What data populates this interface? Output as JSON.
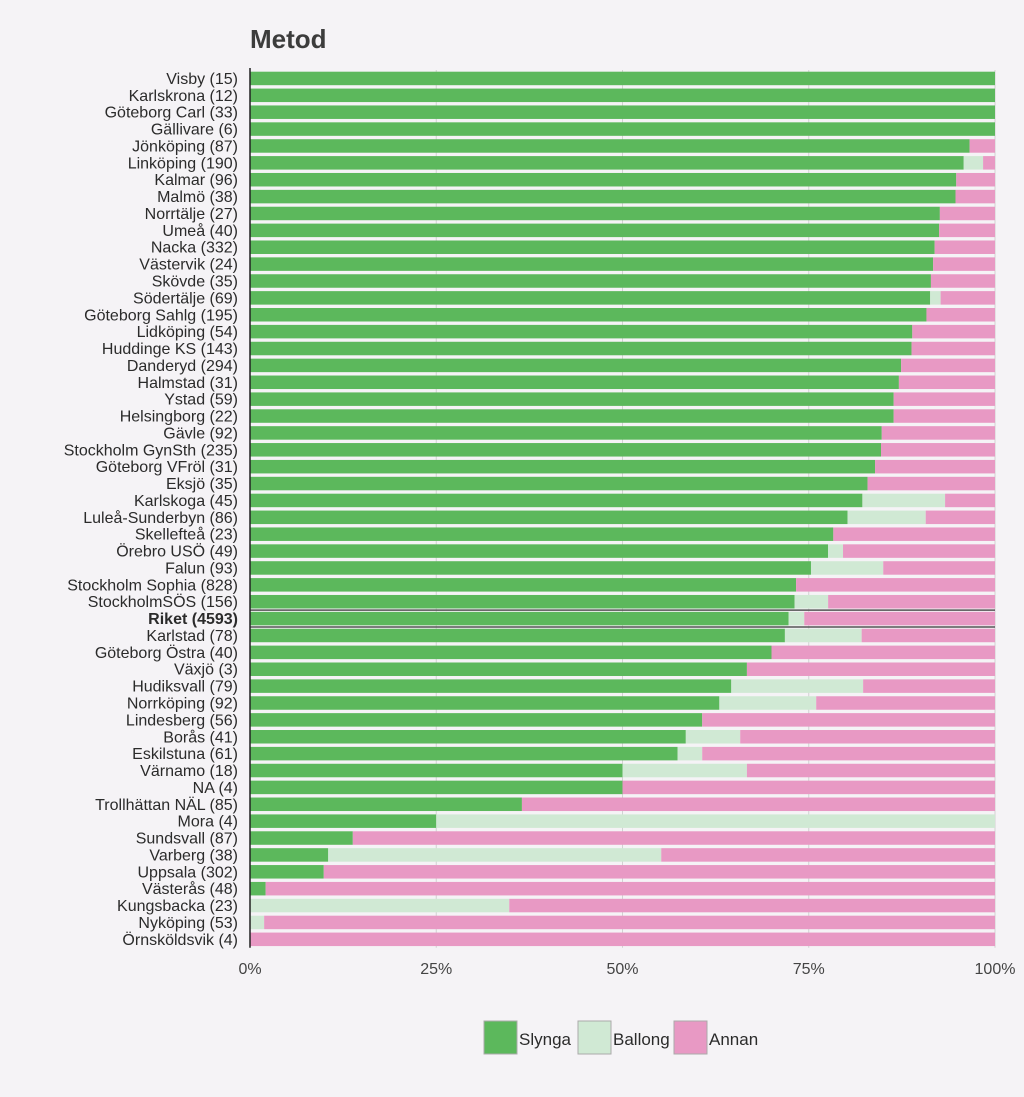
{
  "title": "Metod",
  "colors": {
    "Slynga": "#5cb85c",
    "Ballong": "#d0e9d4",
    "Annan": "#e899c4",
    "grid": "#d2d2d2",
    "axis": "#222222"
  },
  "chart_data": {
    "type": "bar",
    "orientation": "horizontal",
    "stacked": true,
    "title": "Metod",
    "xlim": [
      0,
      100
    ],
    "xticks": [
      "0%",
      "25%",
      "50%",
      "75%",
      "100%"
    ],
    "grid": true,
    "legend": "bottom",
    "highlight": "Riket (4593)",
    "categories": [
      "Visby (15)",
      "Karlskrona (12)",
      "Göteborg Carl (33)",
      "Gällivare (6)",
      "Jönköping (87)",
      "Linköping (190)",
      "Kalmar (96)",
      "Malmö (38)",
      "Norrtälje (27)",
      "Umeå (40)",
      "Nacka (332)",
      "Västervik (24)",
      "Skövde (35)",
      "Södertälje (69)",
      "Göteborg Sahlg (195)",
      "Lidköping (54)",
      "Huddinge KS (143)",
      "Danderyd (294)",
      "Halmstad (31)",
      "Ystad (59)",
      "Helsingborg (22)",
      "Gävle (92)",
      "Stockholm GynSth (235)",
      "Göteborg VFröl (31)",
      "Eksjö (35)",
      "Karlskoga (45)",
      "Luleå-Sunderbyn (86)",
      "Skellefteå (23)",
      "Örebro USÖ (49)",
      "Falun (93)",
      "Stockholm Sophia (828)",
      "StockholmSÖS (156)",
      "Riket (4593)",
      "Karlstad (78)",
      "Göteborg Östra (40)",
      "Växjö (3)",
      "Hudiksvall (79)",
      "Norrköping (92)",
      "Lindesberg (56)",
      "Borås (41)",
      "Eskilstuna (61)",
      "Värnamo (18)",
      "NA (4)",
      "Trollhättan NÄL (85)",
      "Mora (4)",
      "Sundsvall (87)",
      "Varberg (38)",
      "Uppsala (302)",
      "Västerås (48)",
      "Kungsbacka (23)",
      "Nyköping (53)",
      "Örnsköldsvik (4)"
    ],
    "series": [
      {
        "name": "Slynga",
        "values": [
          100,
          100,
          100,
          100,
          96.6,
          95.8,
          94.8,
          94.7,
          92.6,
          92.5,
          91.9,
          91.7,
          91.4,
          91.3,
          90.8,
          88.9,
          88.8,
          87.4,
          87.1,
          86.4,
          86.4,
          84.8,
          84.7,
          83.9,
          82.9,
          82.2,
          80.2,
          78.3,
          77.6,
          75.3,
          73.3,
          73.1,
          72.3,
          71.8,
          70.0,
          66.7,
          64.6,
          63.0,
          60.7,
          58.5,
          57.4,
          50.0,
          50.0,
          36.5,
          25.0,
          13.8,
          10.5,
          9.9,
          2.1,
          0,
          0,
          0
        ]
      },
      {
        "name": "Ballong",
        "values": [
          0,
          0,
          0,
          0,
          0,
          2.6,
          0,
          0,
          0,
          0,
          0,
          0,
          0,
          1.4,
          0,
          0,
          0,
          0,
          0,
          0,
          0,
          0,
          0,
          0,
          0,
          11.1,
          10.5,
          0,
          2.0,
          9.7,
          0,
          4.5,
          2.1,
          10.3,
          0,
          0,
          17.7,
          13.0,
          0,
          7.3,
          3.3,
          16.7,
          0,
          0,
          75.0,
          0,
          44.7,
          0,
          0,
          34.8,
          1.9,
          0
        ]
      },
      {
        "name": "Annan",
        "values": [
          0,
          0,
          0,
          0,
          3.4,
          1.6,
          5.2,
          5.3,
          7.4,
          7.5,
          8.1,
          8.3,
          8.6,
          7.3,
          9.2,
          11.1,
          11.2,
          12.6,
          12.9,
          13.6,
          13.6,
          15.2,
          15.3,
          16.1,
          17.1,
          6.7,
          9.3,
          21.7,
          20.4,
          15.0,
          26.7,
          22.4,
          25.6,
          17.9,
          30.0,
          33.3,
          17.7,
          24.0,
          39.3,
          34.2,
          39.3,
          33.3,
          50.0,
          63.5,
          0,
          86.2,
          44.8,
          90.1,
          97.9,
          65.2,
          98.1,
          100
        ]
      }
    ]
  }
}
